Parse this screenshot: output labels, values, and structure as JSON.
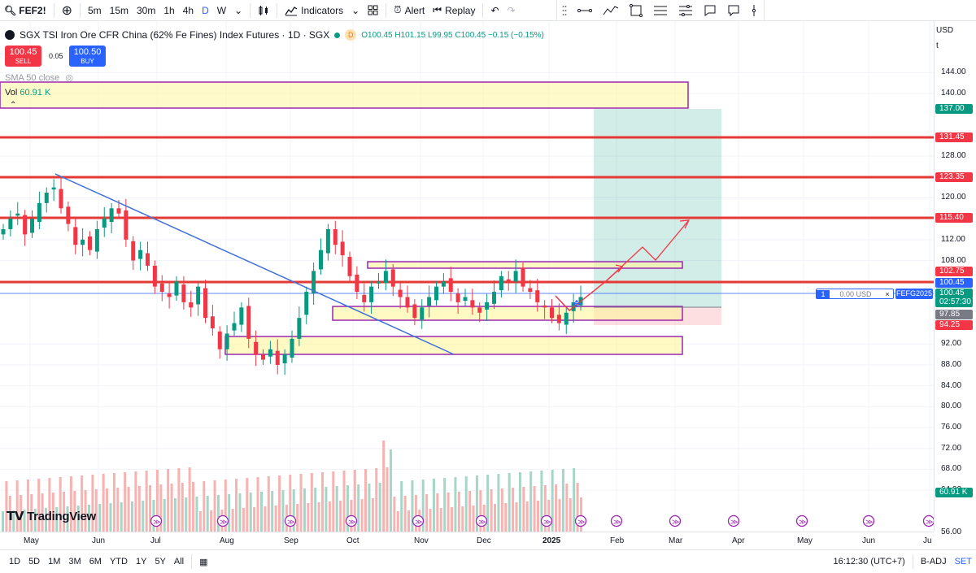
{
  "toolbar": {
    "symbol": "FEF2!",
    "intervals": [
      "5m",
      "15m",
      "30m",
      "1h",
      "4h",
      "D",
      "W"
    ],
    "active_interval": "D",
    "indicators_label": "Indicators",
    "alert_label": "Alert",
    "replay_label": "Replay"
  },
  "legend": {
    "title": "SGX TSI Iron Ore CFR China (62% Fe Fines) Index Futures · 1D · SGX",
    "badge": "D",
    "o": "O100.45",
    "h": "H101.15",
    "l": "L99.95",
    "c": "C100.45",
    "chg": "−0.15 (−0.15%)"
  },
  "trade": {
    "sell_price": "100.45",
    "sell_label": "SELL",
    "spread": "0.05",
    "buy_price": "100.50",
    "buy_label": "BUY"
  },
  "sma_label": "SMA 50 close",
  "vol_label": "Vol",
  "vol_value": "60.91 K",
  "axis": {
    "currency": "USD",
    "unit": "t",
    "ticks": [
      "144.00",
      "140.00",
      "128.00",
      "120.00",
      "112.00",
      "108.00",
      "92.00",
      "88.00",
      "84.00",
      "80.00",
      "76.00",
      "72.00",
      "68.00",
      "64.00",
      "56.00"
    ],
    "labels": [
      {
        "text": "137.00",
        "color": "#089981"
      },
      {
        "text": "131.45",
        "color": "#f23645"
      },
      {
        "text": "123.35",
        "color": "#f23645"
      },
      {
        "text": "115.40",
        "color": "#f23645"
      },
      {
        "text": "102.75",
        "color": "#f23645"
      },
      {
        "text": "100.45",
        "color": "#2962ff"
      },
      {
        "text": "100.45",
        "color": "#089981"
      },
      {
        "text": "02:57:30",
        "color": "#089981"
      },
      {
        "text": "97.85",
        "color": "#787b86"
      },
      {
        "text": "94.25",
        "color": "#f23645"
      },
      {
        "text": "60.91 K",
        "color": "#089981"
      }
    ]
  },
  "time_axis": [
    "May",
    "Jun",
    "Jul",
    "Aug",
    "Sep",
    "Oct",
    "Nov",
    "Dec",
    "2025",
    "Feb",
    "Mar",
    "Apr",
    "May",
    "Jun",
    "Ju"
  ],
  "position": {
    "qty": "1",
    "pnl": "0.00 USD",
    "close": "×",
    "symbol": "FEFG2025"
  },
  "bottom": {
    "ranges": [
      "1D",
      "5D",
      "1M",
      "3M",
      "6M",
      "YTD",
      "1Y",
      "5Y",
      "All"
    ],
    "time": "16:12:30 (UTC+7)",
    "adj": "B-ADJ",
    "set": "SET"
  },
  "logo_text": "TradingView",
  "chart_data": {
    "type": "candlestick",
    "title": "SGX TSI Iron Ore CFR China (62% Fe Fines) Index Futures · 1D · SGX",
    "ylim": [
      56,
      146
    ],
    "price_levels": [
      131.45,
      123.35,
      115.4,
      102.75
    ],
    "target": 137.0,
    "stop": 94.25,
    "entry": 97.85,
    "last": 100.45,
    "x": [
      "May",
      "Jun",
      "Jul",
      "Aug",
      "Sep",
      "Oct",
      "Nov",
      "Dec",
      "2025",
      "Feb",
      "Mar",
      "Apr",
      "May",
      "Jun",
      "Ju"
    ],
    "closes": [
      114,
      116,
      117,
      113,
      116,
      119,
      121,
      122,
      118,
      115,
      111,
      112,
      110,
      114,
      116,
      118,
      117,
      112,
      108,
      110,
      107,
      103,
      102,
      101,
      104,
      100,
      99,
      103,
      97,
      95,
      91,
      94,
      96,
      99,
      93,
      90,
      89,
      91,
      88,
      90,
      93,
      97,
      102,
      106,
      110,
      114,
      111,
      109,
      105,
      102,
      100,
      103,
      104,
      106,
      103,
      101,
      99,
      97,
      99,
      101,
      103,
      104,
      102,
      100,
      101,
      99,
      98,
      100,
      102,
      105,
      104,
      106,
      103,
      102,
      100,
      99,
      97,
      96,
      98,
      100,
      101
    ]
  }
}
